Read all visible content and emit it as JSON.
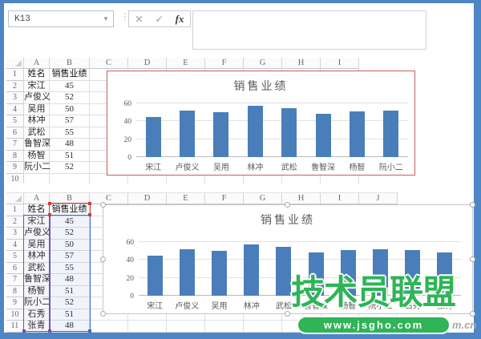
{
  "window": {
    "name_box": "K13",
    "dropdown_icon": "▾",
    "separator_icon": "⋮",
    "cancel_icon": "✕",
    "enter_icon": "✓",
    "fx_icon": "fx",
    "formula_value": ""
  },
  "top_sheet": {
    "columns": [
      "A",
      "B",
      "C",
      "D",
      "E",
      "F",
      "G",
      "H",
      "I"
    ],
    "row_numbers": [
      1,
      2,
      3,
      4,
      5,
      6,
      7,
      8,
      9,
      10
    ],
    "visible_rows": 10,
    "header": {
      "name": "姓名",
      "value": "销售业绩"
    },
    "rows": [
      {
        "name": "宋江",
        "value": "45"
      },
      {
        "name": "卢俊义",
        "value": "52"
      },
      {
        "name": "吴用",
        "value": "50"
      },
      {
        "name": "林冲",
        "value": "57"
      },
      {
        "name": "武松",
        "value": "55"
      },
      {
        "name": "鲁智深",
        "value": "48"
      },
      {
        "name": "杨智",
        "value": "51"
      },
      {
        "name": "阮小二",
        "value": "52"
      }
    ]
  },
  "bottom_sheet": {
    "columns": [
      "A",
      "B",
      "C",
      "D",
      "E",
      "F",
      "G",
      "H",
      "I",
      "J"
    ],
    "row_numbers": [
      1,
      2,
      3,
      4,
      5,
      6,
      7,
      8,
      9,
      10,
      11
    ],
    "visible_rows": 11,
    "header": {
      "name": "姓名",
      "value": "销售业绩"
    },
    "rows": [
      {
        "name": "宋江",
        "value": "45"
      },
      {
        "name": "卢俊义",
        "value": "52"
      },
      {
        "name": "吴用",
        "value": "50"
      },
      {
        "name": "林冲",
        "value": "57"
      },
      {
        "name": "武松",
        "value": "55"
      },
      {
        "name": "鲁智深",
        "value": "48"
      },
      {
        "name": "杨智",
        "value": "51"
      },
      {
        "name": "阮小二",
        "value": "52"
      },
      {
        "name": "石秀",
        "value": "51"
      },
      {
        "name": "张青",
        "value": "48"
      }
    ]
  },
  "chart_data": [
    {
      "type": "bar",
      "title": "销售业绩",
      "categories": [
        "宋江",
        "卢俊义",
        "吴用",
        "林冲",
        "武松",
        "鲁智深",
        "杨智",
        "阮小二"
      ],
      "values": [
        45,
        52,
        50,
        57,
        55,
        48,
        51,
        52
      ],
      "yticks": [
        0,
        20,
        40,
        60
      ],
      "ylim": [
        0,
        60
      ],
      "grid": true,
      "legend": false,
      "bar_color": "#4a7ebb"
    },
    {
      "type": "bar",
      "title": "销售业绩",
      "categories": [
        "宋江",
        "卢俊义",
        "吴用",
        "林冲",
        "武松",
        "鲁智深",
        "杨智",
        "阮小二",
        "石秀",
        "张青"
      ],
      "values": [
        45,
        52,
        50,
        57,
        55,
        48,
        51,
        52,
        51,
        48
      ],
      "yticks": [
        0,
        20,
        40,
        60
      ],
      "ylim": [
        0,
        60
      ],
      "grid": true,
      "legend": false,
      "bar_color": "#4a7ebb"
    }
  ],
  "watermark": {
    "title": "技术员联盟",
    "url": "www.jsgho.com",
    "suffix": "m.cn"
  },
  "colors": {
    "frame_blue": "#4e86c5",
    "bar_blue": "#4a7ebb",
    "chart_border_red": "#c75d5d",
    "selection_purple": "#7b52ab",
    "selection_blue": "#3c6cc4",
    "selection_red": "#d03b33",
    "watermark_green": "#2fb457",
    "gridline_gray": "#d9dfe6"
  }
}
